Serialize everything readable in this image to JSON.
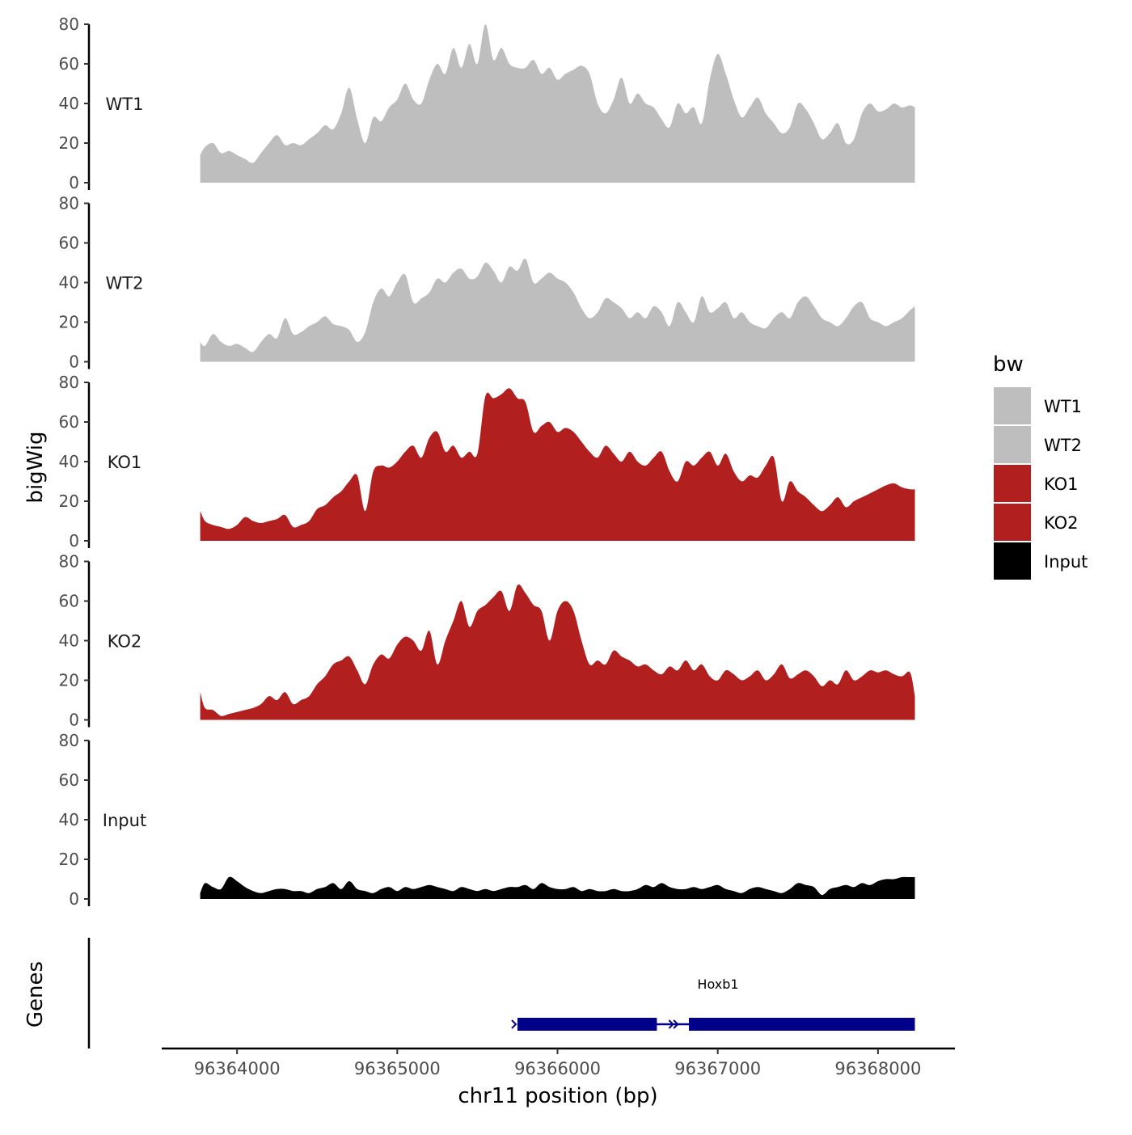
{
  "chart_data": {
    "type": "area",
    "xlabel": "chr11 position (bp)",
    "ylabel": "bigWig",
    "gene_panel_label": "Genes",
    "x_range": [
      96363530,
      96368480
    ],
    "x_ticks": [
      96364000,
      96365000,
      96366000,
      96367000,
      96368000
    ],
    "x_tick_labels": [
      "96364000",
      "96365000",
      "96366000",
      "96367000",
      "96368000"
    ],
    "y_range": [
      0,
      80
    ],
    "y_ticks": [
      0,
      20,
      40,
      60,
      80
    ],
    "y_tick_labels": [
      "0",
      "20",
      "40",
      "60",
      "80"
    ],
    "legend": {
      "title": "bw",
      "position": "right",
      "entries": [
        {
          "label": "WT1",
          "color": "#bebebe"
        },
        {
          "label": "WT2",
          "color": "#bebebe"
        },
        {
          "label": "KO1",
          "color": "#b21f1f"
        },
        {
          "label": "KO2",
          "color": "#b21f1f"
        },
        {
          "label": "Input",
          "color": "#000000"
        }
      ]
    },
    "x": [
      96363770,
      96363800,
      96363850,
      96363900,
      96363950,
      96364000,
      96364050,
      96364100,
      96364150,
      96364200,
      96364250,
      96364300,
      96364350,
      96364400,
      96364450,
      96364500,
      96364550,
      96364600,
      96364650,
      96364700,
      96364750,
      96364800,
      96364850,
      96364900,
      96364950,
      96365000,
      96365050,
      96365100,
      96365150,
      96365200,
      96365250,
      96365300,
      96365350,
      96365400,
      96365450,
      96365500,
      96365550,
      96365600,
      96365650,
      96365700,
      96365750,
      96365800,
      96365850,
      96365900,
      96365950,
      96366000,
      96366050,
      96366100,
      96366150,
      96366200,
      96366250,
      96366300,
      96366350,
      96366400,
      96366450,
      96366500,
      96366550,
      96366600,
      96366650,
      96366700,
      96366750,
      96366800,
      96366850,
      96366900,
      96366950,
      96367000,
      96367050,
      96367100,
      96367150,
      96367200,
      96367250,
      96367300,
      96367350,
      96367400,
      96367450,
      96367500,
      96367550,
      96367600,
      96367650,
      96367700,
      96367750,
      96367800,
      96367850,
      96367900,
      96367950,
      96368000,
      96368050,
      96368100,
      96368150,
      96368200,
      96368230
    ],
    "series": [
      {
        "name": "WT1",
        "color": "#bebebe",
        "values": [
          14,
          18,
          20,
          15,
          16,
          14,
          12,
          10,
          15,
          20,
          24,
          19,
          20,
          19,
          22,
          25,
          29,
          27,
          35,
          48,
          32,
          20,
          33,
          31,
          38,
          42,
          50,
          42,
          40,
          52,
          60,
          55,
          68,
          58,
          70,
          60,
          80,
          62,
          68,
          60,
          58,
          58,
          62,
          55,
          58,
          52,
          55,
          57,
          59,
          55,
          40,
          35,
          42,
          53,
          40,
          45,
          40,
          38,
          32,
          28,
          40,
          35,
          38,
          30,
          52,
          65,
          55,
          42,
          33,
          38,
          43,
          35,
          30,
          25,
          28,
          40,
          37,
          30,
          22,
          25,
          30,
          20,
          22,
          35,
          40,
          36,
          37,
          40,
          38,
          39,
          38
        ]
      },
      {
        "name": "WT2",
        "color": "#bebebe",
        "values": [
          10,
          8,
          14,
          10,
          8,
          9,
          7,
          5,
          10,
          14,
          12,
          22,
          14,
          15,
          18,
          20,
          23,
          19,
          18,
          16,
          10,
          15,
          30,
          37,
          33,
          40,
          44,
          30,
          32,
          35,
          42,
          40,
          45,
          47,
          42,
          43,
          50,
          46,
          40,
          48,
          46,
          52,
          40,
          42,
          45,
          42,
          40,
          35,
          27,
          22,
          25,
          32,
          30,
          27,
          22,
          25,
          22,
          28,
          25,
          18,
          30,
          25,
          20,
          33,
          25,
          27,
          30,
          22,
          25,
          20,
          18,
          17,
          22,
          25,
          22,
          30,
          33,
          28,
          22,
          20,
          18,
          22,
          28,
          30,
          22,
          20,
          18,
          20,
          22,
          26,
          28
        ]
      },
      {
        "name": "KO1",
        "color": "#b21f1f",
        "values": [
          15,
          10,
          8,
          7,
          6,
          8,
          12,
          10,
          9,
          10,
          11,
          13,
          7,
          8,
          10,
          16,
          18,
          22,
          25,
          30,
          33,
          15,
          35,
          38,
          37,
          40,
          45,
          48,
          42,
          52,
          55,
          45,
          48,
          42,
          45,
          44,
          73,
          72,
          74,
          77,
          72,
          70,
          55,
          58,
          60,
          55,
          57,
          55,
          50,
          45,
          42,
          48,
          44,
          40,
          45,
          40,
          38,
          42,
          45,
          35,
          30,
          40,
          38,
          42,
          45,
          38,
          44,
          35,
          30,
          33,
          32,
          38,
          42,
          20,
          30,
          25,
          22,
          18,
          15,
          18,
          22,
          17,
          20,
          22,
          24,
          26,
          28,
          29,
          27,
          26,
          26
        ]
      },
      {
        "name": "KO2",
        "color": "#b21f1f",
        "values": [
          14,
          6,
          5,
          2,
          3,
          4,
          5,
          6,
          8,
          12,
          10,
          14,
          8,
          10,
          12,
          18,
          22,
          28,
          30,
          32,
          25,
          18,
          28,
          33,
          31,
          38,
          42,
          40,
          35,
          45,
          28,
          40,
          50,
          60,
          47,
          55,
          58,
          62,
          65,
          55,
          68,
          64,
          58,
          55,
          40,
          55,
          60,
          55,
          40,
          28,
          30,
          28,
          35,
          32,
          30,
          27,
          28,
          25,
          23,
          27,
          25,
          30,
          25,
          28,
          22,
          20,
          25,
          23,
          20,
          22,
          25,
          20,
          23,
          28,
          21,
          23,
          25,
          22,
          17,
          20,
          18,
          25,
          20,
          22,
          25,
          24,
          25,
          23,
          22,
          24,
          12
        ]
      },
      {
        "name": "Input",
        "color": "#000000",
        "values": [
          3,
          8,
          6,
          5,
          11,
          9,
          6,
          4,
          3,
          4,
          5,
          5,
          4,
          4,
          3,
          5,
          6,
          8,
          5,
          9,
          5,
          4,
          3,
          5,
          6,
          4,
          6,
          5,
          6,
          7,
          6,
          5,
          4,
          6,
          5,
          4,
          5,
          4,
          5,
          6,
          6,
          7,
          5,
          8,
          6,
          5,
          5,
          6,
          4,
          5,
          4,
          4,
          5,
          4,
          4,
          5,
          7,
          6,
          8,
          6,
          5,
          5,
          6,
          5,
          6,
          7,
          5,
          4,
          3,
          5,
          6,
          5,
          4,
          3,
          5,
          8,
          7,
          6,
          2,
          5,
          6,
          7,
          6,
          8,
          7,
          9,
          10,
          10,
          11,
          11,
          11
        ]
      }
    ],
    "genes": [
      {
        "name": "Hoxb1",
        "color": "#00008b",
        "start": 96365750,
        "end": 96368230,
        "exons": [
          [
            96365750,
            96366620
          ],
          [
            96366820,
            96368230
          ]
        ]
      }
    ]
  }
}
